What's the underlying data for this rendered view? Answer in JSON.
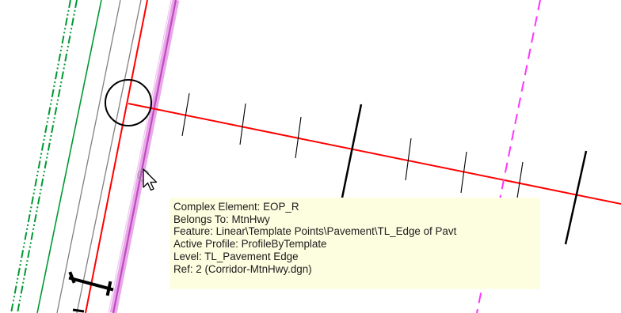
{
  "canvas": {
    "background": "#ffffff",
    "colors": {
      "centerline": "#ff0000",
      "highlight": "#d45cd4",
      "highlight_glow": "#e9a9e9",
      "dashed_magenta": "#ff33ff",
      "green": "#009933",
      "gray": "#808080",
      "black": "#000000",
      "tooltip_bg": "#fdfde0"
    },
    "icons": [
      "snap-circle-icon",
      "arrow-cursor-icon"
    ]
  },
  "tooltip": {
    "lines": [
      "Complex Element: EOP_R",
      "Belongs To: MtnHwy",
      "Feature: Linear\\Template Points\\Pavement\\TL_Edge of Pavt",
      "Active Profile: ProfileByTemplate",
      "Level: TL_Pavement Edge",
      "Ref: 2 (Corridor-MtnHwy.dgn)"
    ]
  }
}
